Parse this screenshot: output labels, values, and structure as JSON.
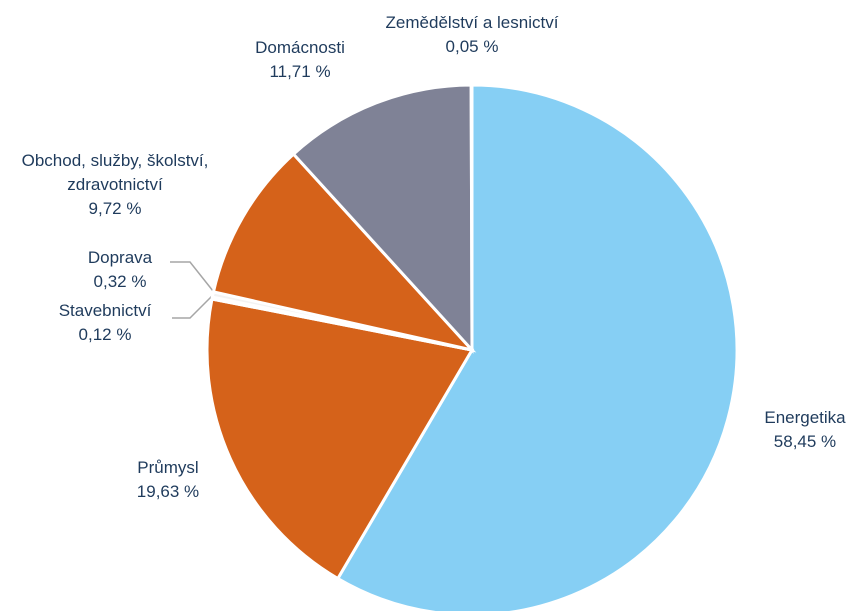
{
  "chart_data": {
    "type": "pie",
    "categories": [
      "Energetika",
      "Průmysl",
      "Stavebnictví",
      "Doprava",
      "Obchod, služby, školství, zdravotnictví",
      "Domácnosti",
      "Zemědělství a lesnictví"
    ],
    "values": [
      58.45,
      19.63,
      0.12,
      0.32,
      9.72,
      11.71,
      0.05
    ],
    "value_labels": [
      "58,45 %",
      "19,63 %",
      "0,12 %",
      "0,32 %",
      "9,72 %",
      "11,71 %",
      "0,05 %"
    ],
    "colors": [
      "#86cff4",
      "#d5621a",
      "#d5621a",
      "#f3f3f3",
      "#d5621a",
      "#7f8296",
      "#a5a5a5"
    ]
  }
}
